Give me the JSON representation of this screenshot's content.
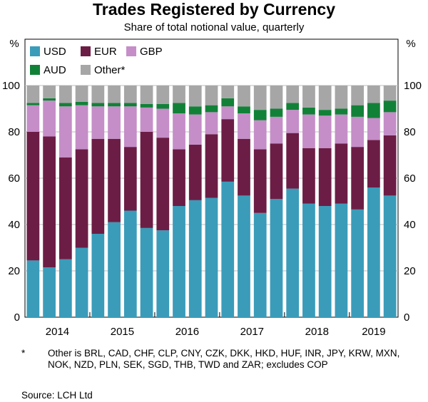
{
  "chart_data": {
    "type": "bar",
    "stacked": true,
    "title": "Trades Registered by Currency",
    "subtitle": "Share of total notional value, quarterly",
    "ylabel_left": "%",
    "ylabel_right": "%",
    "ylim": [
      0,
      100
    ],
    "yticks": [
      0,
      20,
      40,
      60,
      80,
      100
    ],
    "years": [
      "2014",
      "2015",
      "2016",
      "2017",
      "2018",
      "2019"
    ],
    "categories": [
      "2014 Q1",
      "2014 Q2",
      "2014 Q3",
      "2014 Q4",
      "2015 Q1",
      "2015 Q2",
      "2015 Q3",
      "2015 Q4",
      "2016 Q1",
      "2016 Q2",
      "2016 Q3",
      "2016 Q4",
      "2017 Q1",
      "2017 Q2",
      "2017 Q3",
      "2017 Q4",
      "2018 Q1",
      "2018 Q2",
      "2018 Q3",
      "2018 Q4",
      "2019 Q1",
      "2019 Q2",
      "2019 Q3"
    ],
    "series": [
      {
        "name": "USD",
        "color": "#3a9cb9",
        "values": [
          24.5,
          21.5,
          25,
          30,
          36,
          41,
          46,
          38.5,
          37.5,
          48,
          50.5,
          51.5,
          58.5,
          52.5,
          45,
          51,
          55.5,
          49,
          48,
          49,
          46.5,
          56,
          52.5
        ]
      },
      {
        "name": "EUR",
        "color": "#6c1d45",
        "values": [
          55.5,
          56.5,
          44,
          42.5,
          41,
          36,
          27.5,
          41.5,
          40,
          24.5,
          24,
          27.5,
          27,
          24.5,
          27.5,
          24,
          24,
          24,
          25,
          26,
          27,
          20.5,
          26
        ]
      },
      {
        "name": "GBP",
        "color": "#c58ec8",
        "values": [
          11.5,
          15.5,
          22,
          19,
          14,
          14,
          17.5,
          10.5,
          12.5,
          15.5,
          13,
          9.5,
          5.5,
          11,
          12.5,
          11.5,
          10,
          14.5,
          14,
          12.5,
          13,
          9.5,
          10
        ]
      },
      {
        "name": "AUD",
        "color": "#128138",
        "values": [
          1,
          1,
          1.5,
          1.5,
          1.5,
          1.5,
          1.5,
          1.5,
          2,
          4.5,
          3.5,
          3,
          3.5,
          3,
          4.5,
          3.5,
          3,
          3,
          2.5,
          2.5,
          5,
          6.5,
          5
        ]
      },
      {
        "name": "Other*",
        "color": "#a6a6a6",
        "values": [
          7.5,
          5.5,
          7.5,
          7,
          7.5,
          7.5,
          7.5,
          8,
          8,
          7.5,
          9,
          8.5,
          5.5,
          9,
          10.5,
          10,
          7.5,
          9.5,
          10.5,
          10,
          8.5,
          7.5,
          6.5
        ]
      }
    ],
    "legend_row1": [
      "USD",
      "EUR",
      "GBP"
    ],
    "legend_row2": [
      "AUD",
      "Other*"
    ],
    "legend_placement": "top-left"
  },
  "note": {
    "mark": "*",
    "text": "Other is BRL, CAD, CHF, CLP, CNY, CZK, DKK, HKD, HUF, INR, JPY, KRW, MXN, NOK, NZD, PLN, SEK, SGD, THB, TWD and ZAR; excludes COP"
  },
  "source": "Source:   LCH Ltd"
}
